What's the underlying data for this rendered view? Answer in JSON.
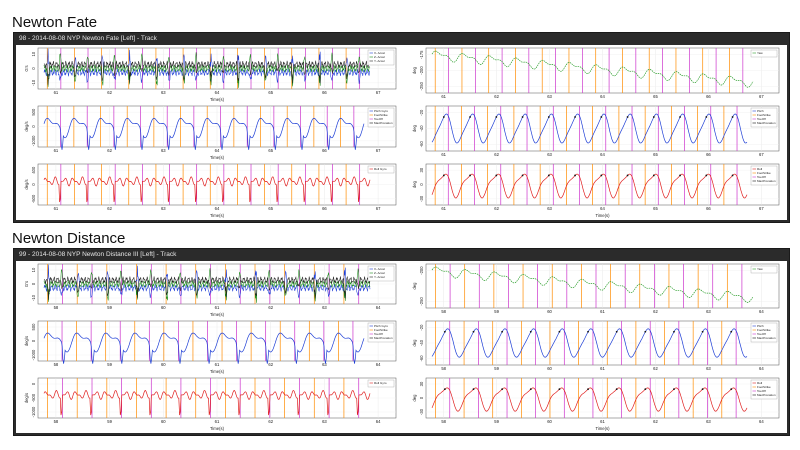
{
  "sections": [
    {
      "title": "Newton Fate",
      "header": "98 - 2014-08-08 NYP Newton Fate [Left] - Track",
      "x_ticks": [
        "61",
        "62",
        "63",
        "64",
        "65",
        "66",
        "67"
      ],
      "chart_data": [
        {
          "type": "line",
          "ylabel": "G's",
          "xlabel": "Time(s)",
          "y_ticks": [
            "-10",
            "0",
            "10"
          ],
          "legend": [
            "X- Accel",
            "Z- Accel",
            "Y- Accel"
          ],
          "series_colors": [
            "#1f3fd6",
            "#1a8c1a",
            "#222222"
          ],
          "cycles": 12,
          "kind": "accel"
        },
        {
          "type": "line",
          "ylabel": "deg",
          "xlabel": "",
          "y_ticks": [
            "-250",
            "-200",
            "-175"
          ],
          "legend": [
            "Yaw"
          ],
          "series_colors": [
            "#2a9d2a"
          ],
          "cycles": 12,
          "kind": "yaw"
        },
        {
          "type": "line",
          "ylabel": "deg/s",
          "xlabel": "Time(s)",
          "y_ticks": [
            "-1000",
            "0",
            "500"
          ],
          "legend": [
            "Pitch Gyro",
            "FootStrike",
            "ToeOff",
            "MaxPronation"
          ],
          "series_colors": [
            "#1f3fd6"
          ],
          "cycles": 12,
          "kind": "pitchgyro"
        },
        {
          "type": "line",
          "ylabel": "deg",
          "xlabel": "",
          "y_ticks": [
            "-60",
            "-40",
            "-20"
          ],
          "legend": [
            "Pitch",
            "FootStrike",
            "ToeOff",
            "MaxPronation"
          ],
          "series_colors": [
            "#1f3fd6"
          ],
          "cycles": 12,
          "kind": "pitch"
        },
        {
          "type": "line",
          "ylabel": "deg/s",
          "xlabel": "Time(s)",
          "y_ticks": [
            "-500",
            "0",
            "400"
          ],
          "legend": [
            "Roll Gyro"
          ],
          "series_colors": [
            "#e02020"
          ],
          "cycles": 12,
          "kind": "rollgyro"
        },
        {
          "type": "line",
          "ylabel": "deg",
          "xlabel": "Time(s)",
          "y_ticks": [
            "-30",
            "0",
            "30"
          ],
          "legend": [
            "Roll",
            "FootStrike",
            "ToeOff",
            "MaxPronation"
          ],
          "series_colors": [
            "#e02020"
          ],
          "cycles": 12,
          "kind": "roll"
        }
      ]
    },
    {
      "title": "Newton Distance",
      "header": "99 - 2014-08-08 NYP Newton Distance III [Left] - Track",
      "x_ticks": [
        "58",
        "59",
        "60",
        "61",
        "62",
        "63",
        "64"
      ],
      "chart_data": [
        {
          "type": "line",
          "ylabel": "G's",
          "xlabel": "Time(s)",
          "y_ticks": [
            "-10",
            "0",
            "10"
          ],
          "legend": [
            "X- Accel",
            "Z- Accel",
            "Y- Accel"
          ],
          "series_colors": [
            "#1f3fd6",
            "#1a8c1a",
            "#222222"
          ],
          "cycles": 11,
          "kind": "accel"
        },
        {
          "type": "line",
          "ylabel": "deg",
          "xlabel": "",
          "y_ticks": [
            "-250",
            "-200"
          ],
          "legend": [
            "Yaw"
          ],
          "series_colors": [
            "#2a9d2a"
          ],
          "cycles": 11,
          "kind": "yaw"
        },
        {
          "type": "line",
          "ylabel": "deg/s",
          "xlabel": "Time(s)",
          "y_ticks": [
            "-1000",
            "0",
            "500"
          ],
          "legend": [
            "Pitch Gyro",
            "FootStrike",
            "ToeOff",
            "MaxPronation"
          ],
          "series_colors": [
            "#1f3fd6"
          ],
          "cycles": 11,
          "kind": "pitchgyro"
        },
        {
          "type": "line",
          "ylabel": "deg",
          "xlabel": "",
          "y_ticks": [
            "-60",
            "-40",
            "-20"
          ],
          "legend": [
            "Pitch",
            "FootStrike",
            "ToeOff",
            "MaxPronation"
          ],
          "series_colors": [
            "#1f3fd6"
          ],
          "cycles": 11,
          "kind": "pitch"
        },
        {
          "type": "line",
          "ylabel": "deg/s",
          "xlabel": "Time(s)",
          "y_ticks": [
            "-1000",
            "-500",
            "0"
          ],
          "legend": [
            "Roll Gyro"
          ],
          "series_colors": [
            "#e02020"
          ],
          "cycles": 11,
          "kind": "rollgyro"
        },
        {
          "type": "line",
          "ylabel": "deg",
          "xlabel": "Time(s)",
          "y_ticks": [
            "-30",
            "0",
            "30"
          ],
          "legend": [
            "Roll",
            "FootStrike",
            "ToeOff",
            "MaxPronation"
          ],
          "series_colors": [
            "#e02020"
          ],
          "cycles": 11,
          "kind": "roll"
        }
      ]
    }
  ],
  "marker_colors": {
    "footstrike": "#ff8c00",
    "toeoff": "#cc33cc"
  }
}
